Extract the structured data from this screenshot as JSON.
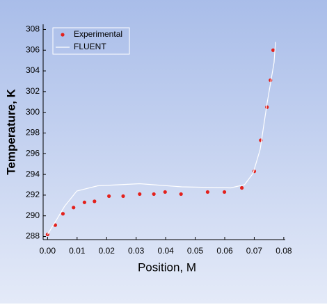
{
  "chart_data": {
    "type": "line",
    "xlabel": "Position, M",
    "ylabel": "Temperature, K",
    "xlim": [
      -0.0015,
      0.0805
    ],
    "ylim": [
      287.7,
      308.5
    ],
    "xticks": [
      {
        "value": 0,
        "label": "0.00"
      },
      0.01,
      0.02,
      0.03,
      0.04,
      0.05,
      0.06,
      0.07,
      0.08
    ],
    "yticks": [
      288,
      290,
      292,
      294,
      296,
      298,
      300,
      302,
      304,
      306,
      308
    ],
    "legend": "upper left",
    "series": [
      {
        "name": "Experimental",
        "type": "scatter",
        "color": "#e3211c",
        "x": [
          0.0,
          0.0026,
          0.0052,
          0.0088,
          0.0125,
          0.0159,
          0.0208,
          0.0256,
          0.0312,
          0.036,
          0.0398,
          0.0452,
          0.0542,
          0.0599,
          0.0658,
          0.07,
          0.0722,
          0.0743,
          0.0755,
          0.0764
        ],
        "values": [
          288.2,
          289.1,
          290.2,
          290.8,
          291.3,
          291.4,
          291.9,
          291.9,
          292.1,
          292.1,
          292.3,
          292.1,
          292.3,
          292.3,
          292.7,
          294.3,
          297.3,
          300.5,
          303.1,
          306.0
        ]
      },
      {
        "name": "FLUENT",
        "type": "line",
        "color": "#ffffff",
        "x": [
          0.0,
          0.0028,
          0.0057,
          0.0099,
          0.017,
          0.0312,
          0.0454,
          0.062,
          0.0667,
          0.0696,
          0.072,
          0.0743,
          0.0767,
          0.0772
        ],
        "values": [
          288.2,
          289.5,
          290.9,
          292.4,
          292.9,
          293.1,
          292.8,
          292.7,
          293.0,
          294.1,
          296.4,
          300.8,
          304.8,
          306.8
        ]
      }
    ]
  }
}
